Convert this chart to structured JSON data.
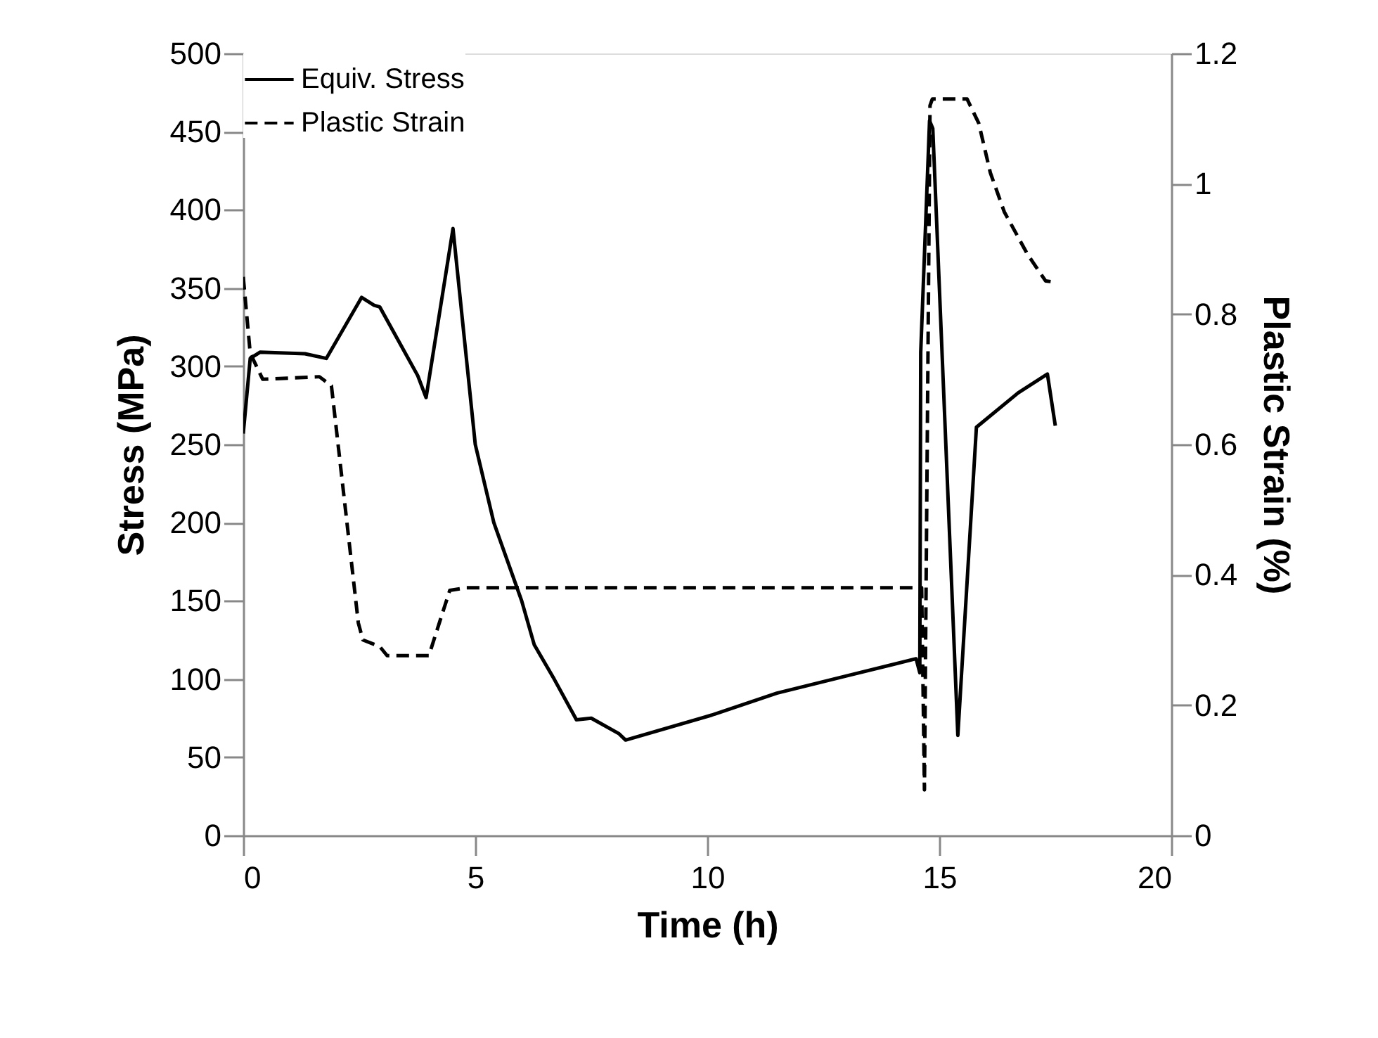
{
  "chart_data": {
    "type": "line",
    "xlabel": "Time (h)",
    "ylabel": "Stress (MPa)",
    "y2label": "Plastic Strain (%)",
    "xlim": [
      0,
      20
    ],
    "xticks": [
      0,
      5,
      10,
      15,
      20
    ],
    "ylim": [
      0,
      500
    ],
    "yticks": [
      0,
      50,
      100,
      150,
      200,
      250,
      300,
      350,
      400,
      450,
      500
    ],
    "y2lim": [
      0,
      1.2
    ],
    "y2ticks": [
      0,
      0.2,
      0.4,
      0.6,
      0.8,
      1,
      1.2
    ],
    "grid": false,
    "legend": "top left",
    "marker": "none",
    "series": [
      {
        "name": "Equiv. Stress",
        "color": "#000000",
        "line_style": "solid",
        "x": [
          0,
          0.15,
          0.36,
          1.33,
          1.79,
          2.55,
          2.82,
          2.94,
          3.76,
          3.94,
          4.52,
          5.0,
          5.4,
          6.0,
          6.27,
          6.7,
          7.18,
          7.5,
          8.1,
          8.24,
          10.1,
          11.5,
          13.0,
          14.5,
          14.58,
          14.6,
          14.79,
          14.86,
          15.4,
          15.8,
          16.7,
          17.33,
          17.5
        ],
        "values": [
          257,
          305,
          309,
          308,
          305,
          344,
          339,
          338,
          294,
          280,
          388,
          250,
          200,
          150,
          122,
          100,
          74,
          75,
          65,
          61,
          77,
          91,
          102,
          113,
          104,
          309,
          457,
          452,
          64,
          261,
          283,
          295,
          262
        ]
      },
      {
        "name": "Plastic Strain",
        "color": "#000000",
        "line_style": "dashed",
        "axis": "y2",
        "x": [
          0,
          0.15,
          0.42,
          1.64,
          1.9,
          2.48,
          2.58,
          2.94,
          3.1,
          4.0,
          4.45,
          4.8,
          14.62,
          14.68,
          14.8,
          14.85,
          15.6,
          15.85,
          16.1,
          16.4,
          16.9,
          17.29,
          17.5
        ],
        "values": [
          0.857,
          0.74,
          0.7,
          0.704,
          0.69,
          0.326,
          0.3,
          0.29,
          0.276,
          0.276,
          0.376,
          0.38,
          0.38,
          0.07,
          1.12,
          1.13,
          1.13,
          1.093,
          1.017,
          0.957,
          0.892,
          0.851,
          0.849
        ]
      }
    ]
  }
}
